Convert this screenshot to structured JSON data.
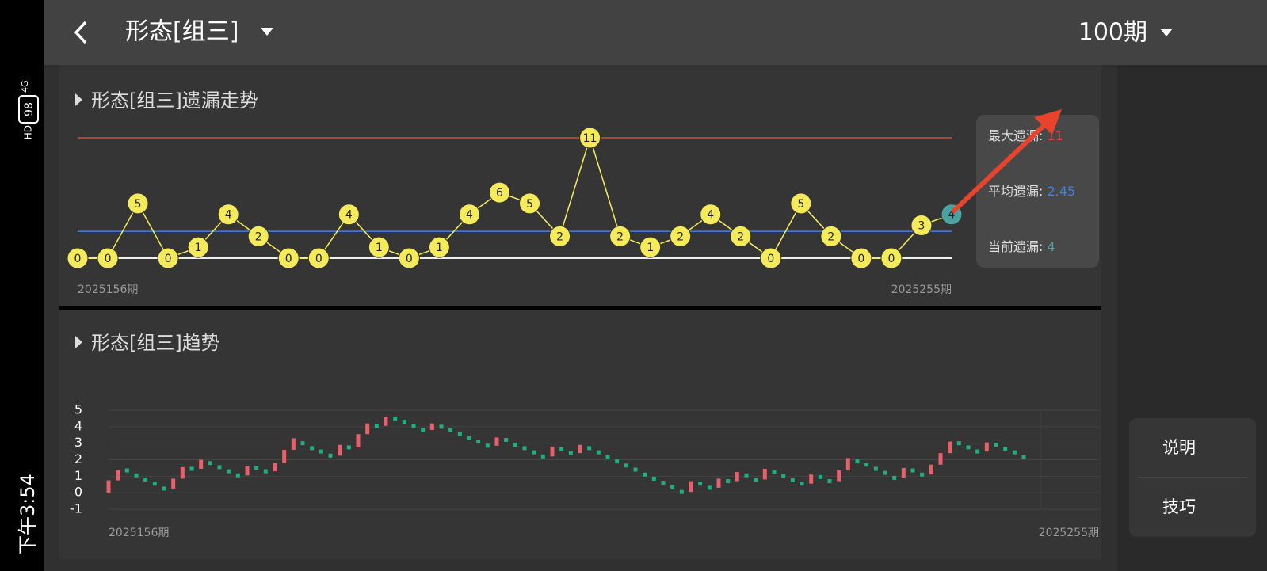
{
  "status_bar": {
    "time": "下午3:54",
    "battery": "98",
    "network": "4G",
    "hd": "HD"
  },
  "header": {
    "title": "形态[组三]",
    "period": "100期"
  },
  "buttons": [
    "说明",
    "技巧"
  ],
  "chart_data": [
    {
      "type": "line",
      "title": "形态[组三]遗漏走势",
      "categories": [
        "2025156期",
        null,
        null,
        null,
        null,
        null,
        null,
        null,
        null,
        null,
        null,
        null,
        null,
        null,
        null,
        null,
        null,
        null,
        null,
        null,
        null,
        null,
        null,
        null,
        null,
        null,
        null,
        null,
        null,
        "2025255期"
      ],
      "values": [
        0,
        0,
        5,
        0,
        1,
        4,
        2,
        0,
        0,
        4,
        1,
        0,
        1,
        4,
        6,
        5,
        2,
        11,
        2,
        1,
        2,
        4,
        2,
        0,
        5,
        2,
        0,
        0,
        3,
        4
      ],
      "color": "#f5eb5a",
      "ylim": [
        0,
        11
      ],
      "stats": [
        {
          "label": "最大遗漏: ",
          "value": 11,
          "color": "#e0443c"
        },
        {
          "label": "平均遗漏: ",
          "value": 2.45,
          "color": "#3f7fe6"
        },
        {
          "label": "当前遗漏: ",
          "value": 4,
          "color": "#4aa3a0"
        }
      ]
    },
    {
      "type": "trend",
      "title": "形态[组三]趋势",
      "categories": [
        "2025156期",
        null,
        null,
        null,
        null,
        null,
        null,
        null,
        null,
        null,
        null,
        null,
        null,
        null,
        null,
        null,
        null,
        null,
        null,
        null,
        null,
        null,
        null,
        null,
        null,
        null,
        null,
        null,
        null,
        null,
        null,
        null,
        null,
        null,
        null,
        null,
        null,
        null,
        null,
        null,
        null,
        null,
        null,
        null,
        null,
        null,
        null,
        null,
        null,
        null,
        null,
        null,
        null,
        null,
        null,
        null,
        null,
        null,
        null,
        null,
        null,
        null,
        null,
        null,
        null,
        null,
        null,
        null,
        null,
        null,
        null,
        null,
        null,
        null,
        null,
        null,
        null,
        null,
        null,
        null,
        null,
        null,
        null,
        null,
        null,
        null,
        null,
        null,
        null,
        null,
        null,
        null,
        null,
        null,
        null,
        null,
        null,
        null,
        null,
        "2025255期"
      ],
      "values": [
        0.75,
        1.4,
        1.35,
        1.05,
        0.8,
        0.55,
        0.25,
        0.85,
        1.55,
        1.45,
        2.0,
        1.8,
        1.55,
        1.3,
        1.05,
        1.6,
        1.5,
        1.3,
        1.8,
        2.6,
        3.3,
        3.0,
        2.7,
        2.5,
        2.25,
        2.9,
        2.75,
        3.55,
        4.2,
        4.05,
        4.6,
        4.5,
        4.3,
        4.05,
        3.8,
        4.2,
        4.0,
        3.8,
        3.55,
        3.3,
        3.1,
        2.85,
        3.35,
        3.2,
        2.9,
        2.7,
        2.45,
        2.2,
        2.8,
        2.65,
        2.4,
        2.9,
        2.7,
        2.45,
        2.15,
        1.9,
        1.65,
        1.4,
        1.1,
        0.85,
        0.6,
        0.35,
        0.05,
        0.7,
        0.55,
        0.3,
        0.85,
        0.7,
        1.25,
        1.05,
        0.8,
        1.45,
        1.25,
        1.0,
        0.75,
        0.55,
        1.1,
        0.95,
        0.7,
        1.35,
        2.1,
        1.9,
        1.7,
        1.45,
        1.2,
        0.9,
        1.5,
        1.35,
        1.1,
        1.7,
        2.4,
        3.1,
        3.0,
        2.75,
        2.5,
        3.05,
        2.9,
        2.65,
        2.45,
        2.15
      ],
      "up_color": "#e8606a",
      "down_color": "#1fae7e",
      "ylim": [
        -1,
        5
      ],
      "yticks": [
        5,
        4,
        3,
        2,
        1,
        0,
        -1
      ],
      "grid": true
    }
  ]
}
